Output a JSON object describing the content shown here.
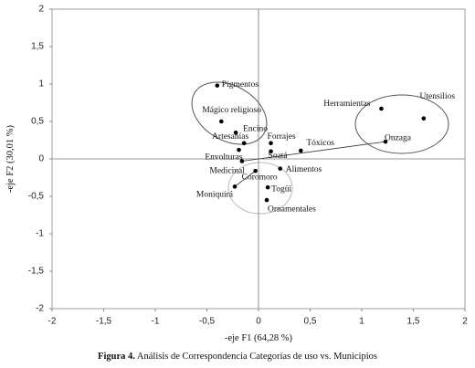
{
  "chart_data": {
    "type": "scatter",
    "x_label": "-eje F1 (64,28 %)",
    "y_label": "-eje F2 (30,01 %)",
    "point_labels": [
      "Pigmentos",
      "Mágico religioso",
      "Encino",
      "Artesanías",
      "Envolturas",
      "Medicinal",
      "Forrajes",
      "Soatá",
      "Tóxicos",
      "Alimentos",
      "Coromoro",
      "Togüi",
      "Ornamentales",
      "Moniquirá",
      "Herramientas",
      "Utensilios",
      "Onzaga"
    ],
    "x": [
      -0.4,
      -0.36,
      -0.22,
      -0.14,
      -0.19,
      -0.16,
      0.12,
      0.12,
      0.41,
      0.21,
      -0.03,
      0.09,
      0.08,
      -0.23,
      1.19,
      1.6,
      1.23
    ],
    "values": [
      0.98,
      0.5,
      0.35,
      0.21,
      0.12,
      -0.03,
      0.21,
      0.1,
      0.11,
      -0.13,
      -0.16,
      -0.38,
      -0.55,
      -0.37,
      0.67,
      0.54,
      0.23
    ],
    "color": "#000000",
    "xlim": [
      -2,
      2
    ],
    "xticks": [
      -2,
      {
        "value": -1.5,
        "label": "-1,5"
      },
      -1,
      {
        "value": -0.5,
        "label": "-0,5"
      },
      0,
      {
        "value": 0.5,
        "label": "0,5"
      },
      1,
      {
        "value": 1.5,
        "label": "1,5"
      },
      2
    ],
    "ylim": [
      -2,
      2
    ],
    "yticks": [
      -2,
      {
        "value": -1.5,
        "label": "-1,5"
      },
      -1,
      {
        "value": -0.5,
        "label": "-0,5"
      },
      0,
      {
        "value": 0.5,
        "label": "0,5"
      },
      1,
      {
        "value": 1.5,
        "label": "1,5"
      },
      2
    ]
  },
  "caption": {
    "bold": "Figura 4.",
    "text": "Análisis de Correspondencia Categorías de uso vs. Municipios"
  }
}
